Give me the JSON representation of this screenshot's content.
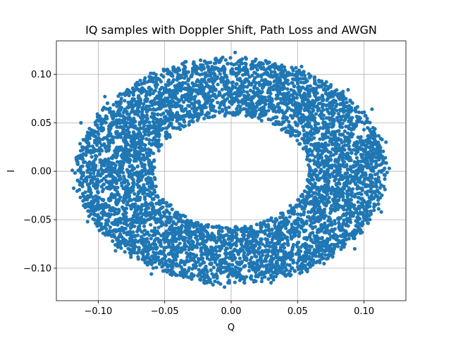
{
  "chart_data": {
    "type": "scatter",
    "title": "IQ samples with Doppler Shift, Path Loss and AWGN",
    "xlabel": "Q",
    "ylabel": "I",
    "xlim": [
      -0.1315,
      0.1315
    ],
    "ylim": [
      -0.1335,
      0.1345
    ],
    "xticks": [
      -0.1,
      -0.05,
      0.0,
      0.05,
      0.1
    ],
    "yticks": [
      -0.1,
      -0.05,
      0.0,
      0.05,
      0.1
    ],
    "xtick_labels": [
      "−0.10",
      "−0.05",
      "0.00",
      "0.05",
      "0.10"
    ],
    "ytick_labels": [
      "−0.10",
      "−0.05",
      "0.00",
      "0.05",
      "0.10"
    ],
    "grid": true,
    "series": [
      {
        "color": "#1f77b4",
        "distribution": "ring",
        "center": [
          0.0,
          0.0
        ],
        "inner_radius": [
          0.058,
          0.058
        ],
        "outer_radius": [
          0.116,
          0.116
        ],
        "point_count": 6000,
        "outlier_points": [
          [
            -0.1185,
            -0.0175
          ],
          [
            -0.1195,
            0.001
          ],
          [
            0.119,
            0.003
          ],
          [
            0.1165,
            0.03
          ],
          [
            0.003,
            0.1225
          ],
          [
            -0.005,
            -0.1195
          ],
          [
            -0.113,
            0.05
          ],
          [
            0.113,
            -0.042
          ],
          [
            -0.095,
            0.077
          ],
          [
            0.088,
            0.084
          ],
          [
            0.093,
            -0.08
          ],
          [
            -0.087,
            -0.082
          ],
          [
            0.053,
            0.108
          ],
          [
            -0.06,
            -0.106
          ],
          [
            0.03,
            -0.115
          ],
          [
            -0.034,
            0.113
          ],
          [
            0.106,
            0.064
          ],
          [
            -0.108,
            -0.052
          ]
        ]
      }
    ]
  }
}
